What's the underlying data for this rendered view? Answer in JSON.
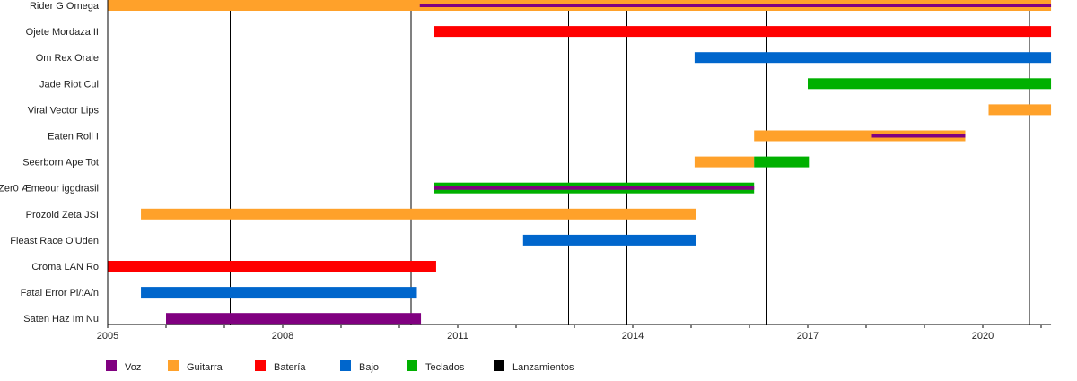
{
  "chart_data": {
    "type": "timeline",
    "title": "",
    "xlim": [
      2005,
      2021.17
    ],
    "xticks": [
      2005,
      2008,
      2011,
      2014,
      2017,
      2020
    ],
    "legend_position": "bottom-left",
    "colors": {
      "Voz": "#800080",
      "Guitarra": "#ffa12a",
      "Batería": "#ff0000",
      "Bajo": "#0066cc",
      "Teclados": "#00b000",
      "Lanzamientos": "#000000"
    },
    "legend": [
      "Voz",
      "Guitarra",
      "Batería",
      "Bajo",
      "Teclados",
      "Lanzamientos"
    ],
    "releases": [
      2007.1,
      2010.2,
      2012.9,
      2013.9,
      2016.3,
      2020.8
    ],
    "members": [
      {
        "name": "Rider G Omega",
        "bars": [
          {
            "role": "Guitarra",
            "from": 2005,
            "to": 2021.17
          },
          {
            "role": "Voz",
            "from": 2010.35,
            "to": 2021.17,
            "thin": true
          }
        ]
      },
      {
        "name": "Ojete Mordaza II",
        "bars": [
          {
            "role": "Batería",
            "from": 2010.6,
            "to": 2021.17
          }
        ]
      },
      {
        "name": "Om Rex Orale",
        "bars": [
          {
            "role": "Bajo",
            "from": 2015.06,
            "to": 2021.17
          }
        ]
      },
      {
        "name": "Jade Riot Cul",
        "bars": [
          {
            "role": "Teclados",
            "from": 2017.0,
            "to": 2021.17
          }
        ]
      },
      {
        "name": "Viral Vector Lips",
        "bars": [
          {
            "role": "Guitarra",
            "from": 2020.1,
            "to": 2021.17
          }
        ]
      },
      {
        "name": "Eaten Roll I",
        "bars": [
          {
            "role": "Guitarra",
            "from": 2016.08,
            "to": 2019.7
          },
          {
            "role": "Voz",
            "from": 2018.1,
            "to": 2019.7,
            "thin": true
          }
        ]
      },
      {
        "name": "Seerborn Ape Tot",
        "bars": [
          {
            "role": "Guitarra",
            "from": 2015.06,
            "to": 2016.08
          },
          {
            "role": "Teclados",
            "from": 2016.08,
            "to": 2017.02
          }
        ]
      },
      {
        "name": "Zer0 Æmeour iggdrasil",
        "bars": [
          {
            "role": "Teclados",
            "from": 2010.6,
            "to": 2016.08
          },
          {
            "role": "Voz",
            "from": 2010.6,
            "to": 2016.08,
            "thin": true
          }
        ]
      },
      {
        "name": "Prozoid Zeta JSI",
        "bars": [
          {
            "role": "Guitarra",
            "from": 2005.57,
            "to": 2015.08
          }
        ]
      },
      {
        "name": "Fleast Race O'Uden",
        "bars": [
          {
            "role": "Bajo",
            "from": 2012.12,
            "to": 2015.08
          }
        ]
      },
      {
        "name": "Croma LAN Ro",
        "bars": [
          {
            "role": "Batería",
            "from": 2005,
            "to": 2010.63
          }
        ]
      },
      {
        "name": "Fatal Error Pl/:A/n",
        "bars": [
          {
            "role": "Bajo",
            "from": 2005.57,
            "to": 2010.3
          }
        ]
      },
      {
        "name": "Saten Haz Im Nu",
        "bars": [
          {
            "role": "Voz",
            "from": 2006.0,
            "to": 2010.37
          }
        ]
      }
    ]
  }
}
